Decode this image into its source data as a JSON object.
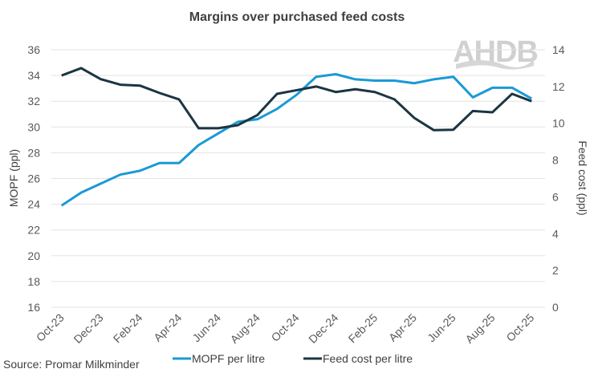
{
  "chart_data": {
    "type": "line",
    "title": "Margins over purchased feed costs",
    "ylabel_left": "MOPF (ppl)",
    "ylabel_right": "Feed cost (ppl)",
    "ylim_left": [
      16,
      36
    ],
    "ylim_right": [
      0,
      14
    ],
    "yticks_left": [
      "16",
      "18",
      "20",
      "22",
      "24",
      "26",
      "28",
      "30",
      "32",
      "34",
      "36"
    ],
    "yticks_right": [
      "0",
      "2",
      "4",
      "6",
      "8",
      "10",
      "12",
      "14"
    ],
    "grid": true,
    "legend": "bottom",
    "x": [
      "Oct-23",
      "Nov-23",
      "Dec-23",
      "Jan-24",
      "Feb-24",
      "Mar-24",
      "Apr-24",
      "May-24",
      "Jun-24",
      "Jul-24",
      "Aug-24",
      "Sep-24",
      "Oct-24",
      "Nov-24",
      "Dec-24",
      "Jan-25",
      "Feb-25",
      "Mar-25",
      "Apr-25",
      "May-25",
      "Jun-25",
      "Jul-25",
      "Aug-25",
      "Sep-25",
      "Oct-25"
    ],
    "xtick_labels": [
      "Oct-23",
      "Dec-23",
      "Feb-24",
      "Apr-24",
      "Jun-24",
      "Aug-24",
      "Oct-24",
      "Dec-24",
      "Feb-25",
      "Apr-25",
      "Jun-25",
      "Aug-25",
      "Oct-25"
    ],
    "series": [
      {
        "name": "MOPF per litre",
        "axis": "left",
        "color": "#1a9ad6",
        "values": [
          23.9,
          24.9,
          25.6,
          26.3,
          26.6,
          27.2,
          27.2,
          28.6,
          29.5,
          30.4,
          30.6,
          31.4,
          32.5,
          33.9,
          34.1,
          33.7,
          33.6,
          33.6,
          33.4,
          33.7,
          33.9,
          32.3,
          33.05,
          33.05,
          32.2
        ]
      },
      {
        "name": "Feed cost per litre",
        "axis": "right",
        "color": "#1b3542",
        "values": [
          12.6,
          13.0,
          12.4,
          12.1,
          12.05,
          11.65,
          11.3,
          9.73,
          9.73,
          9.9,
          10.45,
          11.6,
          11.8,
          12.0,
          11.7,
          11.85,
          11.7,
          11.3,
          10.3,
          9.63,
          9.65,
          10.67,
          10.6,
          11.6,
          11.2
        ]
      }
    ]
  },
  "source": "Source: Promar Milkminder",
  "logo_text": "AHDB"
}
